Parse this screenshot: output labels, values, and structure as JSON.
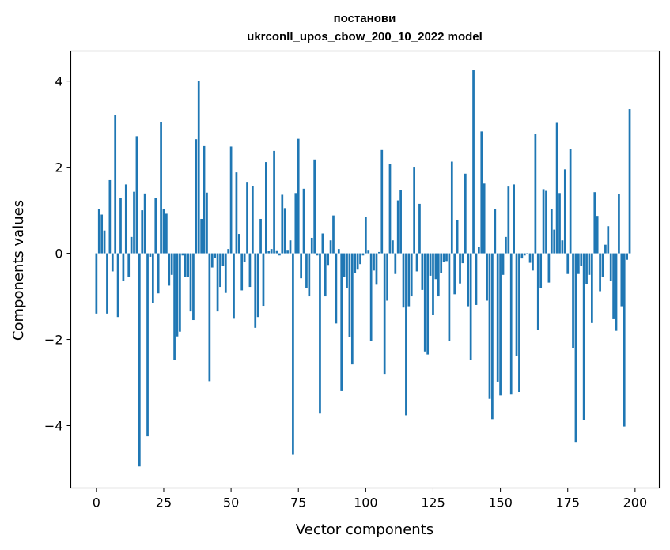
{
  "chart_data": {
    "type": "bar",
    "title_line1": "постанови",
    "title_line2": "ukrconll_upos_cbow_200_10_2022 model",
    "xlabel": "Vector components",
    "ylabel": "Components values",
    "xlim": [
      -9.5,
      209
    ],
    "ylim": [
      -5.45,
      4.7
    ],
    "xticks": [
      0,
      25,
      50,
      75,
      100,
      125,
      150,
      175,
      200
    ],
    "yticks": [
      4,
      2,
      0,
      -2,
      -4
    ],
    "ytick_labels": [
      "4",
      "2",
      "0",
      "−2",
      "−4"
    ],
    "grid": false,
    "bar_color": "#1f77b4",
    "values": [
      -1.4,
      1.02,
      0.9,
      0.53,
      -1.4,
      1.7,
      -0.42,
      3.22,
      -1.48,
      1.28,
      -0.65,
      1.6,
      -0.55,
      0.38,
      1.43,
      2.72,
      -4.95,
      1.0,
      1.39,
      -4.25,
      -0.08,
      -1.15,
      1.28,
      -0.93,
      3.05,
      1.03,
      0.92,
      -0.75,
      -0.5,
      -2.48,
      -1.93,
      -1.82,
      -0.05,
      -0.55,
      -0.55,
      -1.35,
      -1.55,
      2.65,
      4.0,
      0.8,
      2.49,
      1.41,
      -2.97,
      -0.33,
      -0.1,
      -1.35,
      -0.78,
      -0.3,
      -0.92,
      0.1,
      2.48,
      -1.52,
      1.88,
      0.45,
      -0.86,
      -0.2,
      1.66,
      -0.78,
      1.57,
      -1.73,
      -1.48,
      0.8,
      -1.22,
      2.12,
      0.05,
      0.1,
      2.38,
      0.07,
      -0.05,
      1.36,
      1.05,
      0.08,
      0.3,
      -4.68,
      1.4,
      2.66,
      -0.58,
      1.5,
      -0.8,
      -1.0,
      0.36,
      2.18,
      -0.05,
      -3.72,
      0.46,
      -1.0,
      -0.27,
      0.3,
      0.88,
      -1.63,
      0.1,
      -3.2,
      -0.55,
      -0.8,
      -1.94,
      -2.58,
      -0.45,
      -0.38,
      -0.25,
      -0.05,
      0.84,
      0.08,
      -2.03,
      -0.4,
      -0.73,
      0.03,
      2.4,
      -2.8,
      -1.1,
      2.07,
      0.3,
      -0.48,
      1.23,
      1.47,
      -1.26,
      -3.76,
      -1.23,
      -1.0,
      2.01,
      -0.42,
      1.15,
      -0.85,
      -2.28,
      -2.35,
      -0.52,
      -1.43,
      -0.6,
      -1.0,
      -0.45,
      -0.2,
      -0.18,
      -2.03,
      2.13,
      -0.95,
      0.78,
      -0.7,
      -0.23,
      1.85,
      -1.23,
      -2.48,
      4.25,
      -1.2,
      0.15,
      2.83,
      1.62,
      -1.1,
      -3.38,
      -3.85,
      1.03,
      -2.98,
      -3.3,
      -0.5,
      0.38,
      1.55,
      -3.28,
      1.6,
      -2.38,
      -3.22,
      -0.12,
      -0.05,
      -0.02,
      -0.22,
      -0.4,
      2.78,
      -1.78,
      -0.8,
      1.49,
      1.45,
      -0.68,
      1.02,
      0.55,
      3.03,
      1.4,
      0.3,
      1.95,
      -0.48,
      2.42,
      -2.2,
      -4.38,
      -0.48,
      -0.3,
      -3.87,
      -0.72,
      -0.5,
      -1.62,
      1.42,
      0.87,
      -0.88,
      -0.55,
      0.2,
      0.63,
      -0.65,
      -1.53,
      -1.8,
      1.37,
      -1.23,
      -4.02,
      -0.15,
      3.35
    ]
  }
}
